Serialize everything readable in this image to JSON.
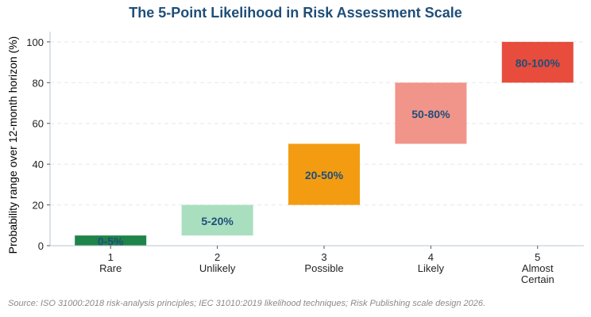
{
  "chart_data": {
    "type": "bar",
    "subtype": "floating-range",
    "title": "The 5-Point Likelihood in Risk Assessment Scale",
    "ylabel": "Probability range over 12-month horizon (%)",
    "xlabel": "",
    "ylim": [
      0,
      105
    ],
    "yticks": [
      0,
      20,
      40,
      60,
      80,
      100
    ],
    "grid": "horizontal-dashed",
    "categories": [
      {
        "num": "1",
        "name": [
          "Rare"
        ]
      },
      {
        "num": "2",
        "name": [
          "Unlikely"
        ]
      },
      {
        "num": "3",
        "name": [
          "Possible"
        ]
      },
      {
        "num": "4",
        "name": [
          "Likely"
        ]
      },
      {
        "num": "5",
        "name": [
          "Almost",
          "Certain"
        ]
      }
    ],
    "ranges": [
      {
        "low": 0,
        "high": 5,
        "label": "0-5%",
        "color": "#1e8449"
      },
      {
        "low": 5,
        "high": 20,
        "label": "5-20%",
        "color": "#a9dfbf"
      },
      {
        "low": 20,
        "high": 50,
        "label": "20-50%",
        "color": "#f39c12"
      },
      {
        "low": 50,
        "high": 80,
        "label": "50-80%",
        "color": "#f1948a"
      },
      {
        "low": 80,
        "high": 100,
        "label": "80-100%",
        "color": "#e74c3c"
      }
    ]
  },
  "colors": {
    "title": "#1f4e79",
    "bar_label": "#1f4e79",
    "axis": "#000000",
    "grid": "#e3e8ee",
    "source": "#8a8a8a"
  },
  "source_note": "Source: ISO 31000:2018 risk-analysis principles; IEC 31010:2019 likelihood techniques; Risk Publishing scale design 2026."
}
